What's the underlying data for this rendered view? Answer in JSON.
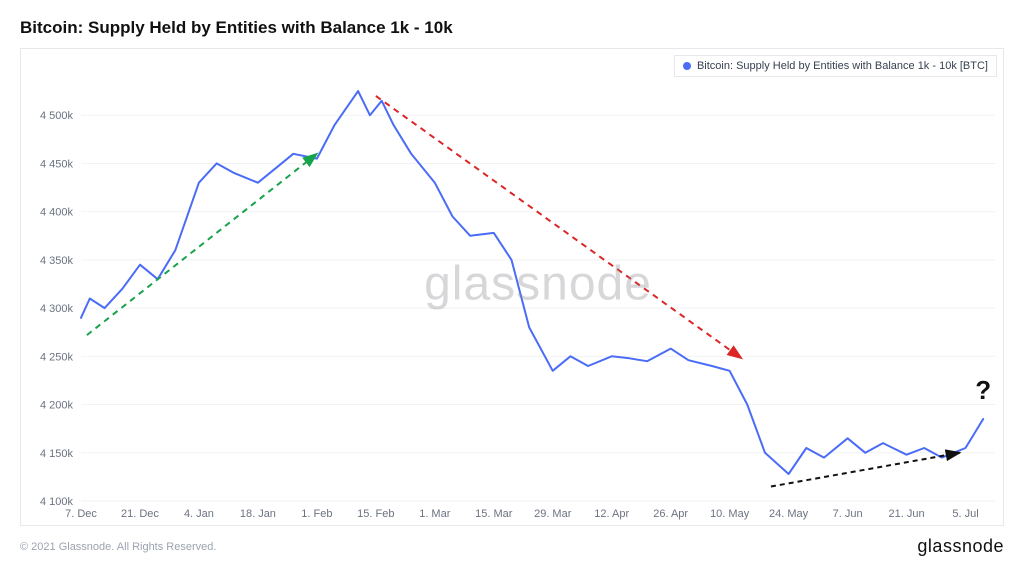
{
  "title": "Bitcoin: Supply Held by Entities with Balance 1k - 10k",
  "legend_label": "Bitcoin: Supply Held by Entities with Balance 1k - 10k [BTC]",
  "watermark": "glassnode",
  "copyright": "© 2021 Glassnode. All Rights Reserved.",
  "brand": "glassnode",
  "question_mark": "?",
  "chart": {
    "type": "line",
    "background_color": "#ffffff",
    "grid_color": "#f1f2f4",
    "line_color": "#4a6cf7",
    "line_width": 2,
    "ylim": [
      4100,
      4550
    ],
    "yticks": [
      4100,
      4150,
      4200,
      4250,
      4300,
      4350,
      4400,
      4450,
      4500
    ],
    "ytick_labels": [
      "4 100k",
      "4 150k",
      "4 200k",
      "4 250k",
      "4 300k",
      "4 350k",
      "4 400k",
      "4 450k",
      "4 500k"
    ],
    "xtick_labels": [
      "7. Dec",
      "21. Dec",
      "4. Jan",
      "18. Jan",
      "1. Feb",
      "15. Feb",
      "1. Mar",
      "15. Mar",
      "29. Mar",
      "12. Apr",
      "26. Apr",
      "10. May",
      "24. May",
      "7. Jun",
      "21. Jun",
      "5. Jul"
    ],
    "xlim": [
      0,
      15.5
    ],
    "data": [
      [
        0,
        4290
      ],
      [
        0.15,
        4310
      ],
      [
        0.4,
        4300
      ],
      [
        0.7,
        4320
      ],
      [
        1.0,
        4345
      ],
      [
        1.3,
        4330
      ],
      [
        1.6,
        4360
      ],
      [
        2.0,
        4430
      ],
      [
        2.3,
        4450
      ],
      [
        2.6,
        4440
      ],
      [
        3.0,
        4430
      ],
      [
        3.3,
        4445
      ],
      [
        3.6,
        4460
      ],
      [
        4.0,
        4455
      ],
      [
        4.3,
        4490
      ],
      [
        4.7,
        4525
      ],
      [
        4.9,
        4500
      ],
      [
        5.1,
        4515
      ],
      [
        5.3,
        4490
      ],
      [
        5.6,
        4460
      ],
      [
        6.0,
        4430
      ],
      [
        6.3,
        4395
      ],
      [
        6.6,
        4375
      ],
      [
        7.0,
        4378
      ],
      [
        7.3,
        4350
      ],
      [
        7.6,
        4280
      ],
      [
        8.0,
        4235
      ],
      [
        8.3,
        4250
      ],
      [
        8.6,
        4240
      ],
      [
        9.0,
        4250
      ],
      [
        9.3,
        4248
      ],
      [
        9.6,
        4245
      ],
      [
        10.0,
        4258
      ],
      [
        10.3,
        4246
      ],
      [
        10.7,
        4240
      ],
      [
        11.0,
        4235
      ],
      [
        11.3,
        4200
      ],
      [
        11.6,
        4150
      ],
      [
        12.0,
        4128
      ],
      [
        12.3,
        4155
      ],
      [
        12.6,
        4145
      ],
      [
        13.0,
        4165
      ],
      [
        13.3,
        4150
      ],
      [
        13.6,
        4160
      ],
      [
        14.0,
        4148
      ],
      [
        14.3,
        4155
      ],
      [
        14.6,
        4145
      ],
      [
        15.0,
        4155
      ],
      [
        15.3,
        4185
      ]
    ],
    "annotations": [
      {
        "type": "dashed_arrow",
        "color": "#16a34a",
        "from": [
          0.1,
          4272
        ],
        "to": [
          4.0,
          4460
        ],
        "width": 2,
        "dash": "6,5"
      },
      {
        "type": "dashed_arrow",
        "color": "#dc2626",
        "from": [
          5.0,
          4520
        ],
        "to": [
          11.2,
          4248
        ],
        "width": 2,
        "dash": "6,5"
      },
      {
        "type": "dashed_arrow",
        "color": "#111111",
        "from": [
          11.7,
          4115
        ],
        "to": [
          14.9,
          4150
        ],
        "width": 2,
        "dash": "5,4"
      }
    ],
    "question_pos": [
      15.3,
      4210
    ]
  }
}
